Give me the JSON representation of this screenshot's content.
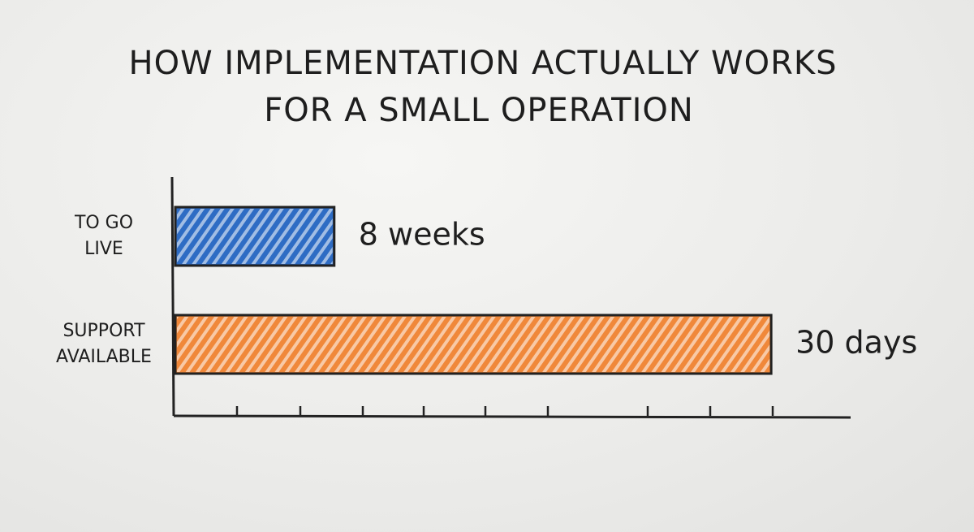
{
  "chart_data": {
    "type": "bar",
    "orientation": "horizontal",
    "title": [
      "HOW IMPLEMENTATION ACTUALLY WORKS",
      "FOR A SMALL OPERATION"
    ],
    "categories": [
      [
        "TO GO",
        "LIVE"
      ],
      [
        "SUPPORT",
        "AVAILABLE"
      ]
    ],
    "values": [
      8,
      30
    ],
    "value_labels": [
      "8 weeks",
      "30 days"
    ],
    "colors": [
      "#2e6cc4",
      "#f0883a"
    ],
    "xlim": [
      0,
      34
    ]
  }
}
